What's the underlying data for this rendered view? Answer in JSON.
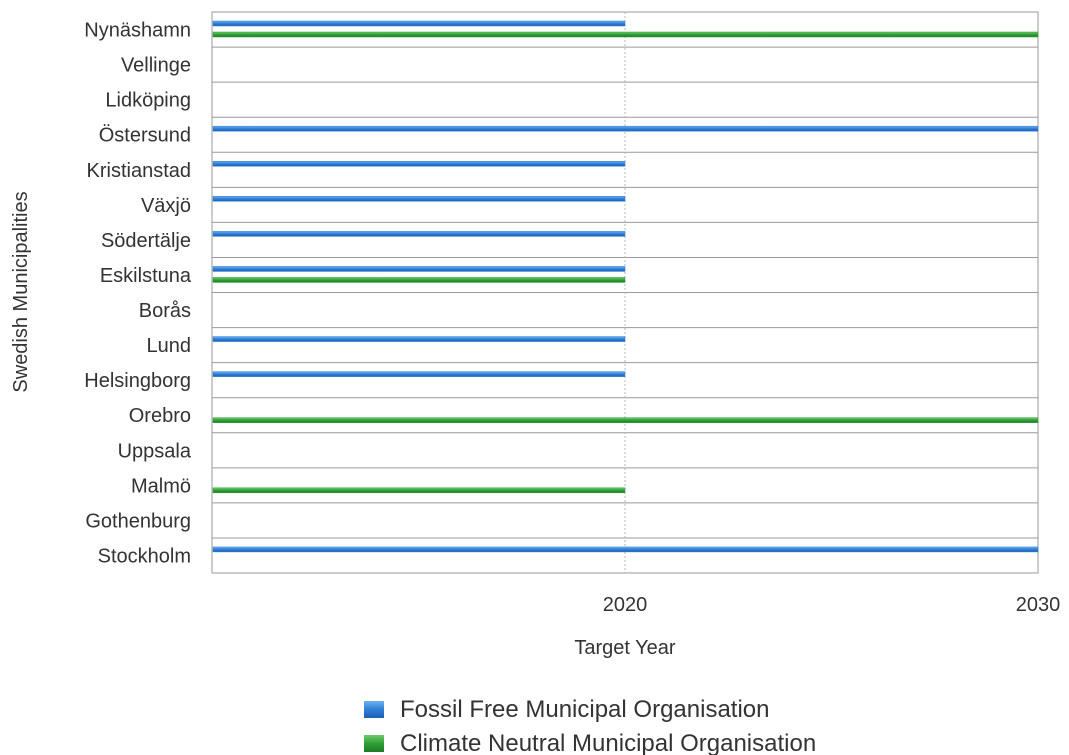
{
  "chart_data": {
    "type": "bar",
    "orientation": "horizontal",
    "xlabel": "Target Year",
    "ylabel": "Swedish Municipalities",
    "xlim": [
      2010,
      2030
    ],
    "xticks": [
      "2020",
      "2030"
    ],
    "categories": [
      "Nynäshamn",
      "Vellinge",
      "Lidköping",
      "Östersund",
      "Kristianstad",
      "Växjö",
      "Södertälje",
      "Eskilstuna",
      "Borås",
      "Lund",
      "Helsingborg",
      "Orebro",
      "Uppsala",
      "Malmö",
      "Gothenburg",
      "Stockholm"
    ],
    "series": [
      {
        "name": "Fossil Free Municipal Organisation",
        "color": "#2f7fd6",
        "values": [
          2020,
          null,
          null,
          2030,
          2020,
          2020,
          2020,
          2020,
          null,
          2020,
          2020,
          null,
          null,
          null,
          null,
          2030
        ]
      },
      {
        "name": "Climate Neutral Municipal Organisation",
        "color": "#2f9e35",
        "values": [
          2030,
          null,
          null,
          null,
          null,
          null,
          null,
          2020,
          null,
          null,
          null,
          2030,
          null,
          2020,
          null,
          null
        ]
      }
    ],
    "grid": true,
    "legend_position": "bottom-center"
  }
}
